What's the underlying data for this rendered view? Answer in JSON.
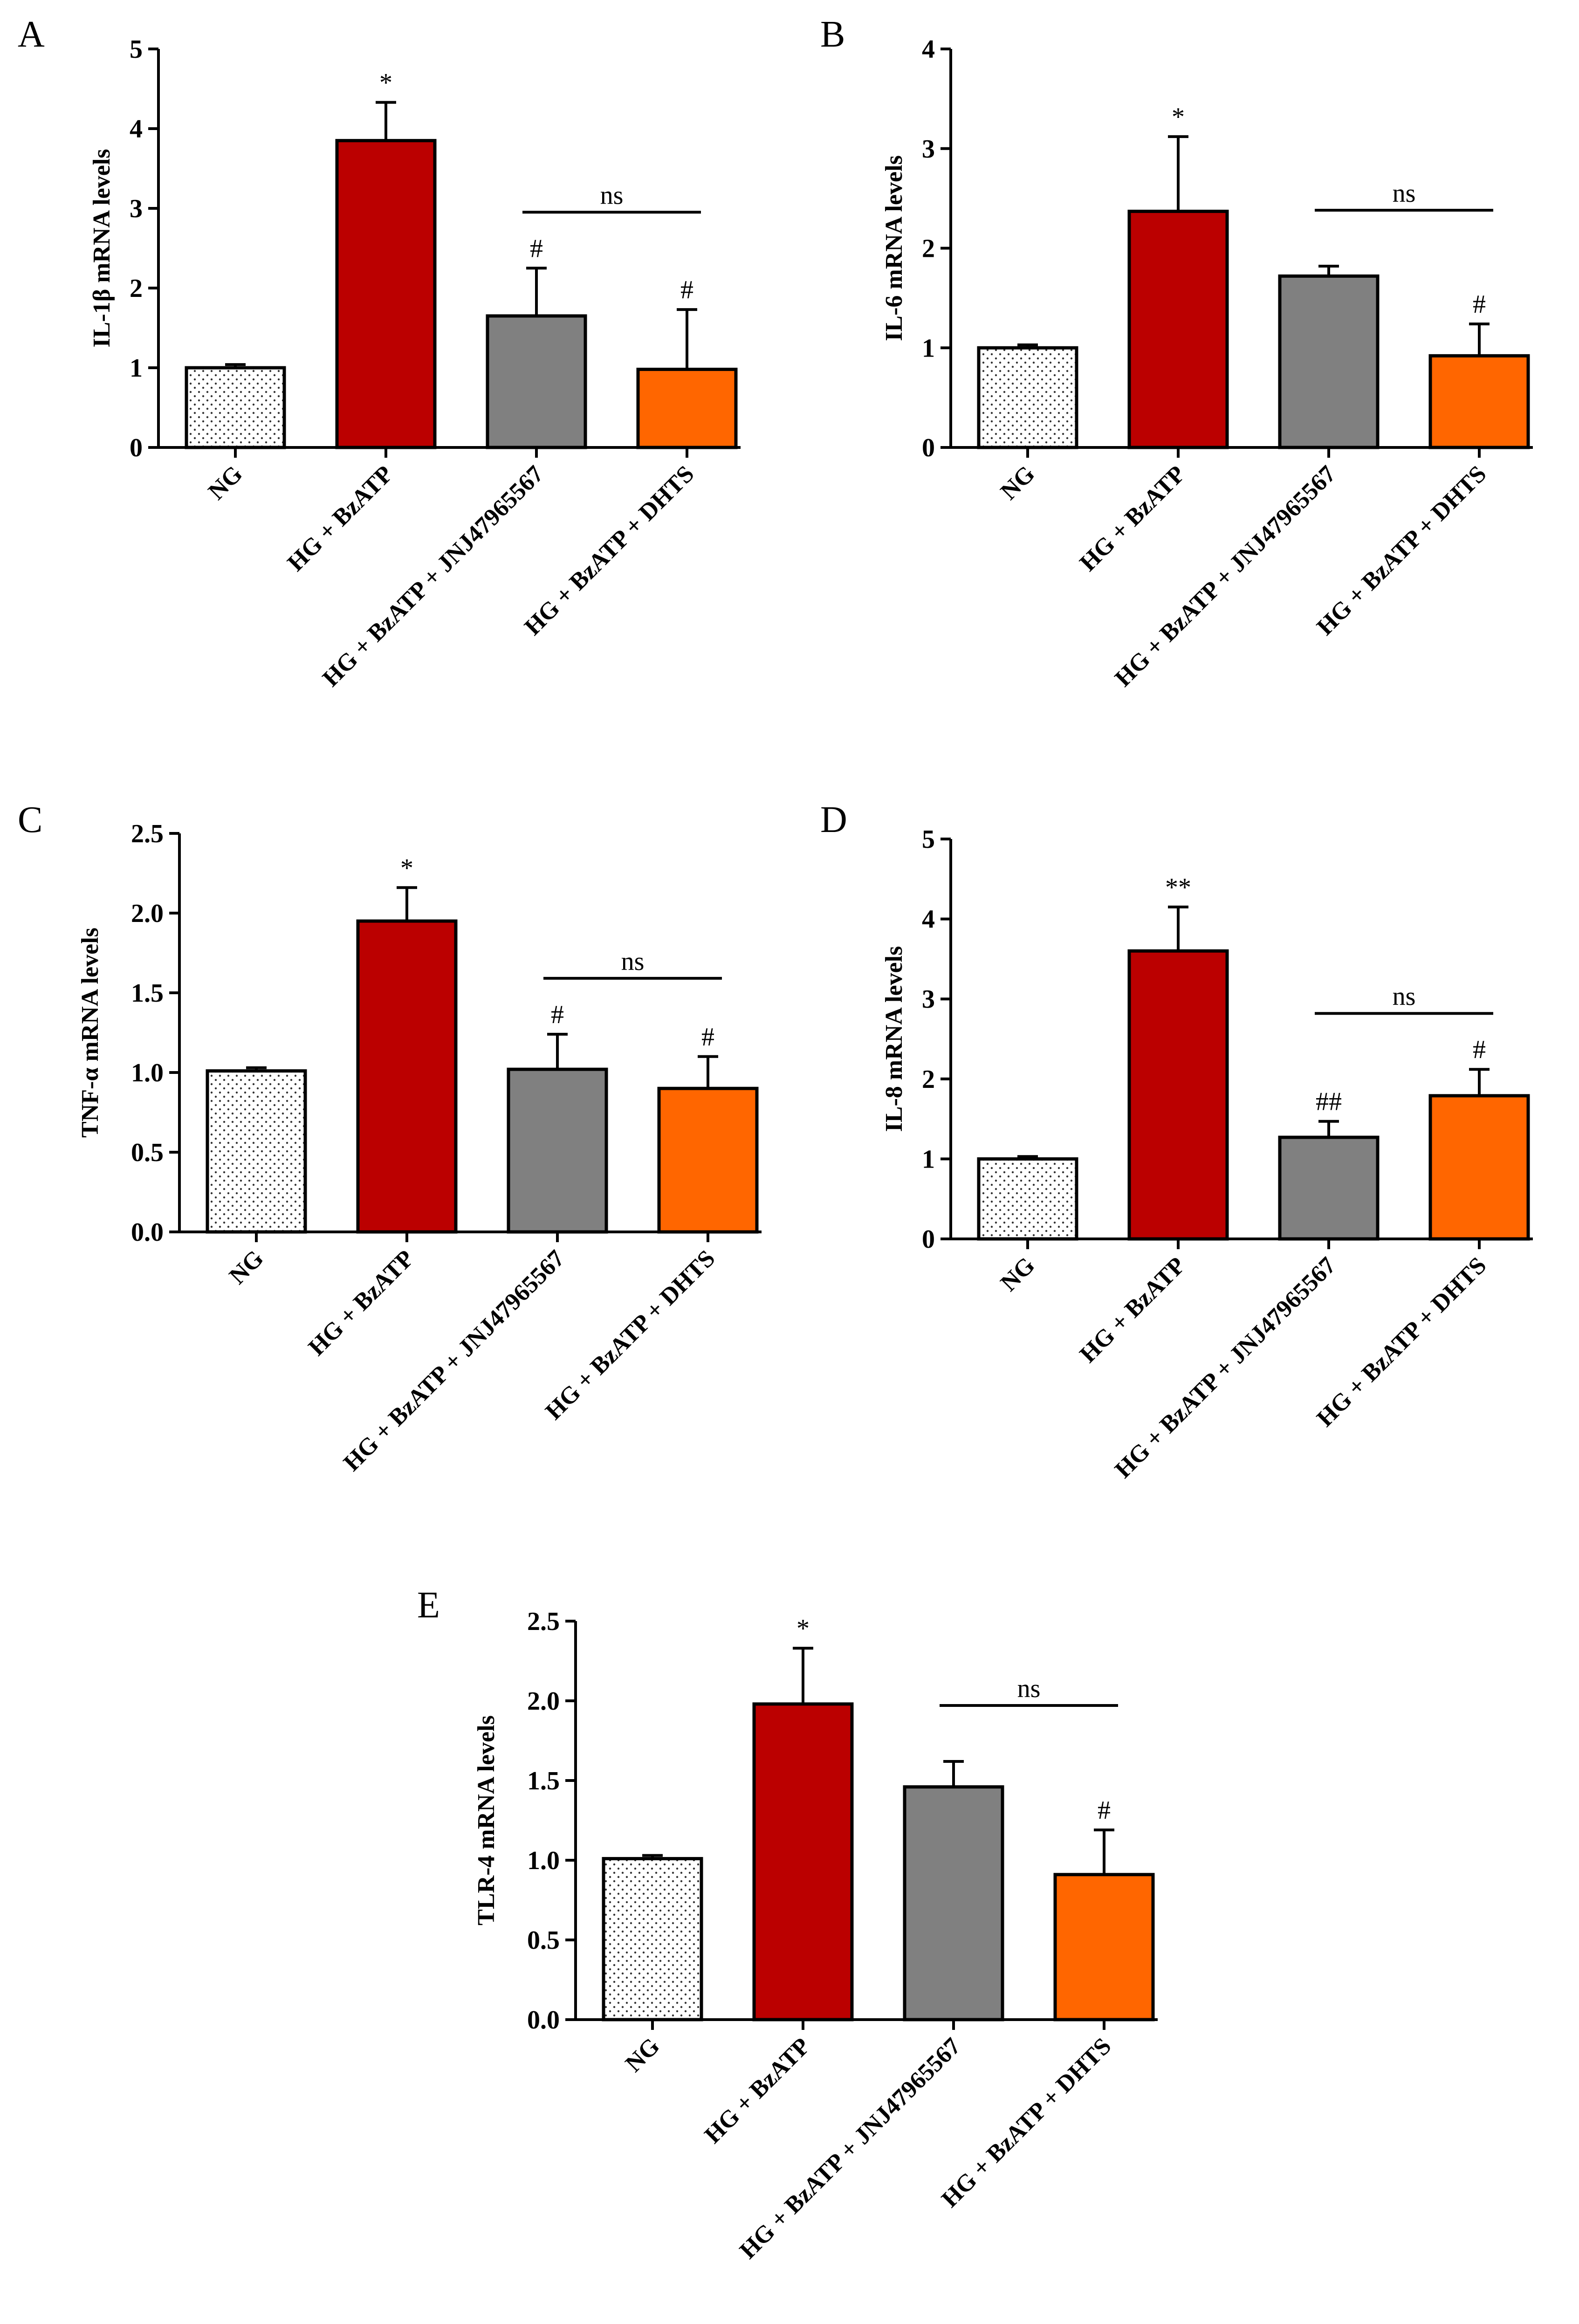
{
  "figure": {
    "categories": [
      "NG",
      "HG + BzATP",
      "HG + BzATP + JNJ47965567",
      "HG + BzATP + DHTS"
    ],
    "group_colors": [
      "#ffffff",
      "#bb0000",
      "#808080",
      "#ff6600"
    ],
    "group_patterns": [
      "dots",
      "solid",
      "solid",
      "solid"
    ]
  },
  "chart_data": [
    {
      "panel": "A",
      "type": "bar",
      "ylabel": "IL-1β mRNA levels",
      "ylim": [
        0,
        5
      ],
      "yticks": [
        0,
        1,
        2,
        3,
        4,
        5
      ],
      "ytick_labels": [
        "0",
        "1",
        "2",
        "3",
        "4",
        "5"
      ],
      "values": [
        1.0,
        3.85,
        1.65,
        0.98
      ],
      "errors": [
        0.04,
        0.48,
        0.6,
        0.75
      ],
      "significance": [
        "",
        "*",
        "#",
        "#"
      ],
      "bracket": {
        "from": 2,
        "to": 3,
        "label": "ns"
      }
    },
    {
      "panel": "B",
      "type": "bar",
      "ylabel": "IL-6 mRNA levels",
      "ylim": [
        0,
        4
      ],
      "yticks": [
        0,
        1,
        2,
        3,
        4
      ],
      "ytick_labels": [
        "0",
        "1",
        "2",
        "3",
        "4"
      ],
      "values": [
        1.0,
        2.37,
        1.72,
        0.92
      ],
      "errors": [
        0.03,
        0.75,
        0.1,
        0.32
      ],
      "significance": [
        "",
        "*",
        "",
        "#"
      ],
      "bracket": {
        "from": 2,
        "to": 3,
        "label": "ns"
      }
    },
    {
      "panel": "C",
      "type": "bar",
      "ylabel": "TNF-α mRNA levels",
      "ylim": [
        0,
        2.5
      ],
      "yticks": [
        0,
        0.5,
        1.0,
        1.5,
        2.0,
        2.5
      ],
      "ytick_labels": [
        "0.0",
        "0.5",
        "1.0",
        "1.5",
        "2.0",
        "2.5"
      ],
      "values": [
        1.01,
        1.95,
        1.02,
        0.9
      ],
      "errors": [
        0.02,
        0.21,
        0.22,
        0.2
      ],
      "significance": [
        "",
        "*",
        "#",
        "#"
      ],
      "bracket": {
        "from": 2,
        "to": 3,
        "label": "ns"
      }
    },
    {
      "panel": "D",
      "type": "bar",
      "ylabel": "IL-8 mRNA levels",
      "ylim": [
        0,
        5
      ],
      "yticks": [
        0,
        1,
        2,
        3,
        4,
        5
      ],
      "ytick_labels": [
        "0",
        "1",
        "2",
        "3",
        "4",
        "5"
      ],
      "values": [
        1.0,
        3.6,
        1.27,
        1.79
      ],
      "errors": [
        0.03,
        0.55,
        0.2,
        0.33
      ],
      "significance": [
        "",
        "**",
        "##",
        "#"
      ],
      "bracket": {
        "from": 2,
        "to": 3,
        "label": "ns"
      }
    },
    {
      "panel": "E",
      "type": "bar",
      "ylabel": "TLR-4 mRNA levels",
      "ylim": [
        0,
        2.5
      ],
      "yticks": [
        0,
        0.5,
        1.0,
        1.5,
        2.0,
        2.5
      ],
      "ytick_labels": [
        "0.0",
        "0.5",
        "1.0",
        "1.5",
        "2.0",
        "2.5"
      ],
      "values": [
        1.01,
        1.98,
        1.46,
        0.91
      ],
      "errors": [
        0.02,
        0.35,
        0.16,
        0.28
      ],
      "significance": [
        "",
        "*",
        "",
        "#"
      ],
      "bracket": {
        "from": 2,
        "to": 3,
        "label": "ns"
      }
    }
  ]
}
